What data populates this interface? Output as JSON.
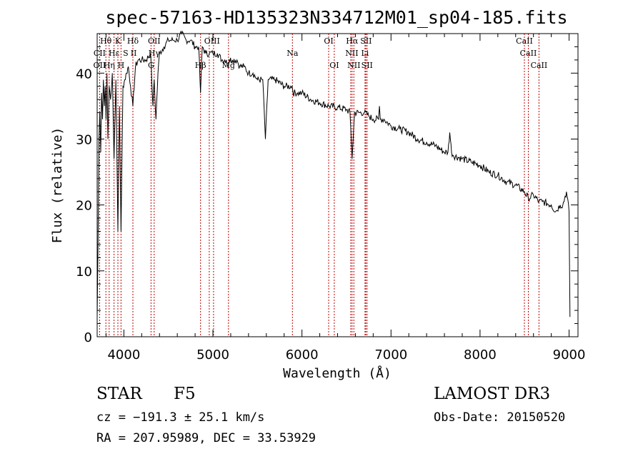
{
  "chart_data": {
    "type": "line",
    "title": "spec-57163-HD135323N334712M01_sp04-185.fits",
    "xlabel": "Wavelength (Å)",
    "ylabel": "Flux (relative)",
    "xlim": [
      3700,
      9100
    ],
    "ylim": [
      0,
      46
    ],
    "xticks": [
      4000,
      5000,
      6000,
      7000,
      8000,
      9000
    ],
    "yticks": [
      0,
      10,
      20,
      30,
      40
    ],
    "series": [
      {
        "name": "flux",
        "x": [
          3700,
          3710,
          3720,
          3730,
          3740,
          3750,
          3760,
          3770,
          3780,
          3790,
          3800,
          3810,
          3820,
          3835,
          3850,
          3870,
          3889,
          3910,
          3933,
          3950,
          3968,
          3990,
          4010,
          4030,
          4050,
          4075,
          4101,
          4130,
          4160,
          4200,
          4250,
          4300,
          4326,
          4340,
          4360,
          4383,
          4400,
          4450,
          4500,
          4550,
          4600,
          4650,
          4700,
          4750,
          4800,
          4840,
          4861,
          4880,
          4920,
          4960,
          5000,
          5050,
          5100,
          5150,
          5167,
          5184,
          5220,
          5270,
          5300,
          5350,
          5400,
          5450,
          5500,
          5560,
          5590,
          5620,
          5700,
          5800,
          5890,
          5900,
          5950,
          6000,
          6100,
          6200,
          6300,
          6400,
          6500,
          6540,
          6563,
          6590,
          6650,
          6700,
          6750,
          6800,
          6860,
          6870,
          6880,
          6920,
          7000,
          7100,
          7200,
          7300,
          7400,
          7500,
          7600,
          7640,
          7660,
          7680,
          7700,
          7800,
          7900,
          8000,
          8100,
          8200,
          8300,
          8400,
          8498,
          8542,
          8600,
          8662,
          8700,
          8800,
          8850,
          8900,
          8930,
          8950,
          8970,
          9000,
          9010
        ],
        "y": [
          3,
          14,
          30,
          34,
          28,
          37,
          33,
          39,
          35,
          38,
          33,
          40,
          30,
          38,
          36,
          40,
          27,
          39,
          16,
          35,
          16,
          38,
          39,
          40,
          41,
          38,
          35,
          41,
          42,
          42,
          42,
          43,
          35,
          39,
          33,
          40,
          43,
          44,
          45,
          45,
          45,
          46,
          45,
          45,
          44,
          44,
          37,
          44,
          43,
          43,
          43,
          43,
          42,
          42,
          41,
          42,
          42,
          42,
          41,
          41,
          40,
          40,
          39,
          39,
          30,
          39,
          39,
          38,
          38,
          37,
          37,
          37,
          36,
          35.5,
          35,
          34.8,
          34.5,
          34,
          27,
          34,
          34,
          34,
          33.5,
          33,
          33,
          35,
          33,
          33,
          32,
          31.5,
          31,
          30,
          29.5,
          29,
          28,
          28,
          31,
          28,
          27.5,
          27,
          26.5,
          26,
          25,
          24.5,
          23.5,
          23,
          22,
          21,
          21.5,
          20.5,
          20.5,
          20,
          19,
          20,
          20,
          21,
          22,
          19,
          3
        ]
      }
    ],
    "line_labels": [
      {
        "label": "Hθ",
        "wave": 3798,
        "row": 0
      },
      {
        "label": "OII",
        "wave": 3727,
        "row": 2
      },
      {
        "label": "CII",
        "wave": 3727,
        "row": 1
      },
      {
        "label": "Hη",
        "wave": 3835,
        "row": 2
      },
      {
        "label": "Hε",
        "wave": 3889,
        "row": 1
      },
      {
        "label": "H",
        "wave": 3968,
        "row": 2
      },
      {
        "label": "K",
        "wave": 3933,
        "row": 0
      },
      {
        "label": "S",
        "wave": 4020,
        "row": 1
      },
      {
        "label": "Hδ",
        "wave": 4101,
        "row": 0
      },
      {
        "label": "II",
        "wave": 4110,
        "row": 1
      },
      {
        "label": "G",
        "wave": 4305,
        "row": 2
      },
      {
        "label": "OII",
        "wave": 4340,
        "row": 0
      },
      {
        "label": "Hγ",
        "wave": 4340,
        "row": 1
      },
      {
        "label": "Hβ",
        "wave": 4861,
        "row": 2
      },
      {
        "label": "OIII",
        "wave": 4990,
        "row": 0
      },
      {
        "label": "Mg",
        "wave": 5175,
        "row": 2
      },
      {
        "label": "Na",
        "wave": 5893,
        "row": 1
      },
      {
        "label": "OI",
        "wave": 6300,
        "row": 0
      },
      {
        "label": "OI",
        "wave": 6363,
        "row": 2
      },
      {
        "label": "Hα",
        "wave": 6563,
        "row": 0
      },
      {
        "label": "NII",
        "wave": 6560,
        "row": 1
      },
      {
        "label": "NII",
        "wave": 6583,
        "row": 2
      },
      {
        "label": "SII",
        "wave": 6720,
        "row": 0
      },
      {
        "label": "Li",
        "wave": 6708,
        "row": 1
      },
      {
        "label": "SII",
        "wave": 6731,
        "row": 2
      },
      {
        "label": "CaII",
        "wave": 8498,
        "row": 0
      },
      {
        "label": "CaII",
        "wave": 8542,
        "row": 1
      },
      {
        "label": "CaII",
        "wave": 8662,
        "row": 2
      }
    ],
    "line_waves": [
      3727,
      3798,
      3835,
      3889,
      3933,
      3968,
      4101,
      4305,
      4340,
      4861,
      4959,
      5007,
      5175,
      5893,
      6300,
      6363,
      6548,
      6563,
      6583,
      6708,
      6717,
      6731,
      8498,
      8542,
      8662
    ]
  },
  "info": {
    "object_class": "STAR",
    "subclass": "F5",
    "survey": "LAMOST DR3",
    "cz": "cz = −191.3 ± 25.1 km/s",
    "obs_date": "Obs-Date: 20150520",
    "coords": "RA = 207.95989, DEC =  33.53929"
  },
  "colors": {
    "spectrum": "#000000",
    "line_marker": "#c00000",
    "axis": "#000000"
  }
}
